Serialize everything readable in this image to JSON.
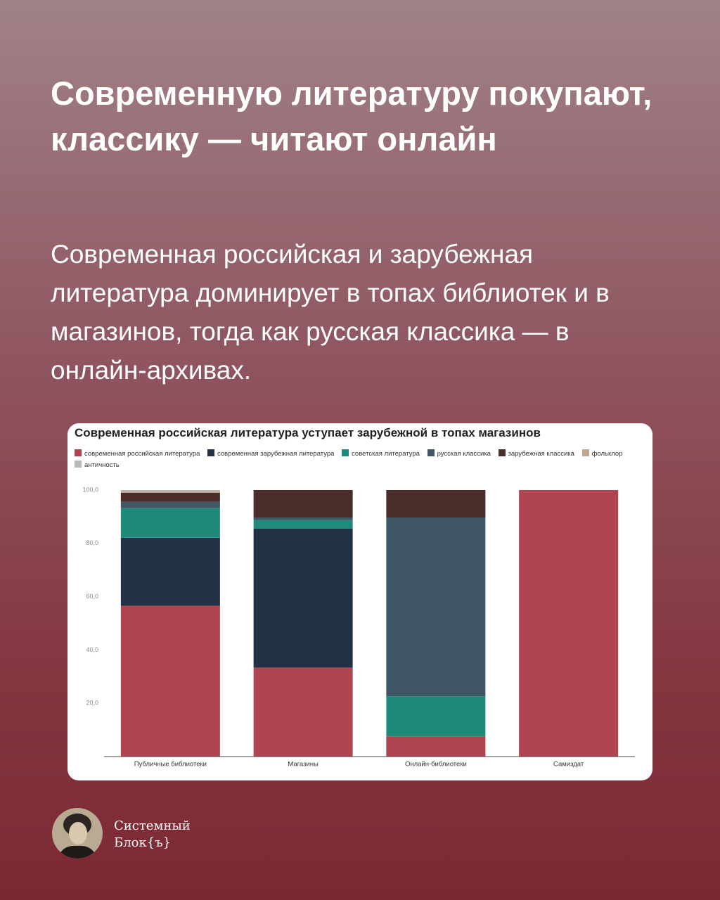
{
  "header": {
    "title": "Современную литературу покупают, классику — читают онлайн",
    "subtitle": "Современная российская и зарубежная литература доминирует в топах библиотек и в магазинов, тогда как русская классика — в онлайн-архивах."
  },
  "chart_data": {
    "type": "stacked-bar",
    "title": "Современная российская литература уступает зарубежной в топах магазинов",
    "categories": [
      "Публичные библиотеки",
      "Магазины",
      "Онлайн-библиотеки",
      "Самиздат"
    ],
    "series": [
      {
        "name": "современная российская литература",
        "color": "#b04451",
        "values": [
          56.6,
          33.4,
          7.6,
          100
        ]
      },
      {
        "name": "современная зарубежная литература",
        "color": "#213246",
        "values": [
          25.5,
          52.1,
          0,
          0
        ]
      },
      {
        "name": "советская литература",
        "color": "#1e8a7a",
        "values": [
          11.1,
          3.2,
          15.0,
          0
        ]
      },
      {
        "name": "русская классика",
        "color": "#3f5664",
        "values": [
          2.4,
          1.0,
          67.1,
          0
        ]
      },
      {
        "name": "зарубежная классика",
        "color": "#4a2d2b",
        "values": [
          3.4,
          10.3,
          10.3,
          0
        ]
      },
      {
        "name": "фольклор",
        "color": "#c4a88e",
        "values": [
          0.5,
          0,
          0,
          0
        ]
      },
      {
        "name": "античность",
        "color": "#b8b8b8",
        "values": [
          0.5,
          0,
          0,
          0
        ]
      }
    ],
    "ylim": [
      0,
      100
    ],
    "yticks": [
      {
        "value": 20,
        "label": "20,0"
      },
      {
        "value": 40,
        "label": "40,0"
      },
      {
        "value": 60,
        "label": "60,0"
      },
      {
        "value": 80,
        "label": "80,0"
      },
      {
        "value": 100,
        "label": "100,0"
      }
    ],
    "legend": "top"
  },
  "brand": {
    "lines": [
      "Системный",
      "Блок{ъ}"
    ]
  }
}
